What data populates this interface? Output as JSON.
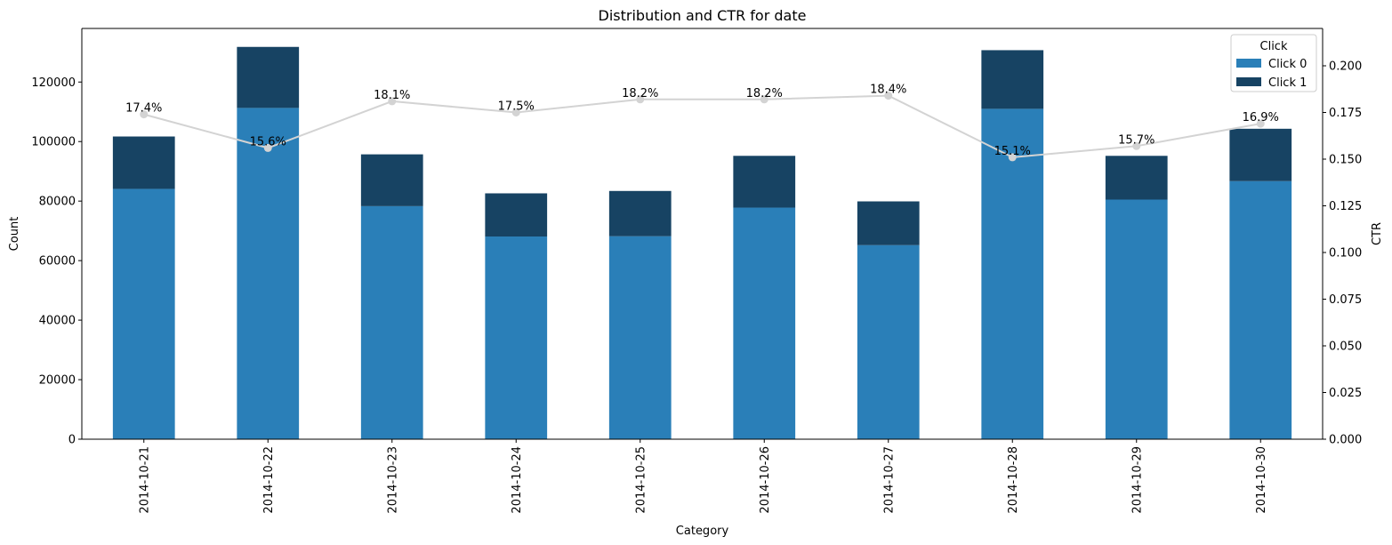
{
  "chart_data": {
    "type": "bar",
    "stacked": true,
    "title": "Distribution and CTR for date",
    "xlabel": "Category",
    "ylabel": "Count",
    "y2label": "CTR",
    "categories": [
      "2014-10-21",
      "2014-10-22",
      "2014-10-23",
      "2014-10-24",
      "2014-10-25",
      "2014-10-26",
      "2014-10-27",
      "2014-10-28",
      "2014-10-29",
      "2014-10-30"
    ],
    "ylim": [
      0,
      138000
    ],
    "y2lim": [
      0,
      0.22
    ],
    "yticks": [
      0,
      20000,
      40000,
      60000,
      80000,
      100000,
      120000
    ],
    "ytick_labels": [
      "0",
      "20000",
      "40000",
      "60000",
      "80000",
      "100000",
      "120000"
    ],
    "y2ticks": [
      0,
      0.025,
      0.05,
      0.075,
      0.1,
      0.125,
      0.15,
      0.175,
      0.2
    ],
    "y2tick_labels": [
      "0.000",
      "0.025",
      "0.050",
      "0.075",
      "0.100",
      "0.125",
      "0.150",
      "0.175",
      "0.200"
    ],
    "series": [
      {
        "name": "Click 0",
        "color": "#2a7fb8",
        "values": [
          84100,
          111300,
          78300,
          68100,
          68200,
          77800,
          65200,
          111000,
          80500,
          86700
        ]
      },
      {
        "name": "Click 1",
        "color": "#174363",
        "values": [
          17600,
          20500,
          17400,
          14500,
          15200,
          17400,
          14700,
          19700,
          14700,
          17600
        ]
      }
    ],
    "line": {
      "name": "CTR",
      "color": "#d3d3d3",
      "values": [
        0.174,
        0.156,
        0.181,
        0.175,
        0.182,
        0.182,
        0.184,
        0.151,
        0.157,
        0.169
      ],
      "labels": [
        "17.4%",
        "15.6%",
        "18.1%",
        "17.5%",
        "18.2%",
        "18.2%",
        "18.4%",
        "15.1%",
        "15.7%",
        "16.9%"
      ]
    },
    "legend": {
      "title": "Click",
      "position": "top-right"
    },
    "grid": false
  }
}
